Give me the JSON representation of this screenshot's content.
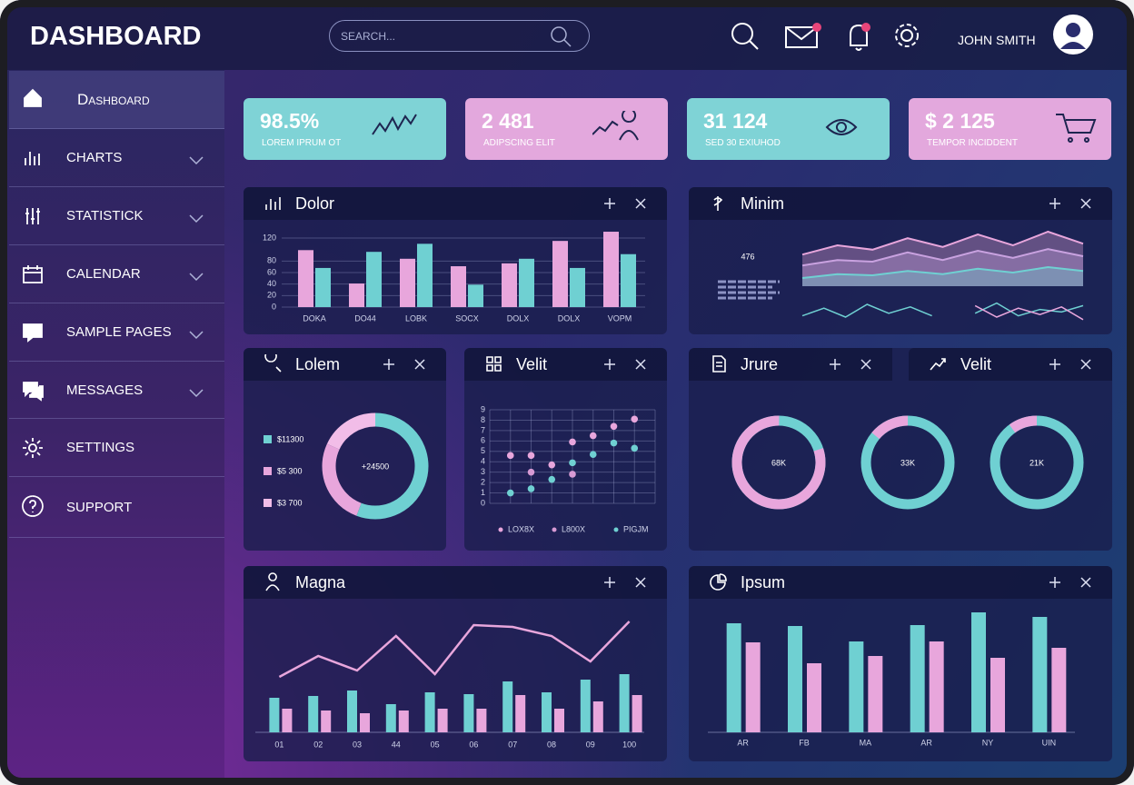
{
  "header": {
    "title": "DASHBOARD",
    "search": "SEARCH...",
    "user": "JOHN SMITH"
  },
  "sidebar": [
    "Dashboard",
    "CHARTS",
    "STATISTICK",
    "CALENDAR",
    "SAMPLE PAGES",
    "MESSAGES",
    "SETTINGS",
    "SUPPORT"
  ],
  "stats": [
    {
      "value": "98.5%",
      "label": "LOREM IPRUM OT",
      "color": "#7fd3d6"
    },
    {
      "value": "2 481",
      "label": "ADIPSCING ELIT",
      "color": "#e3a8dd"
    },
    {
      "value": "31 124",
      "label": "SED 30 EXIUHOD",
      "color": "#7fd3d6"
    },
    {
      "value": "$ 2 125",
      "label": "TEMPOR INCIDDENT",
      "color": "#e3a8dd"
    }
  ],
  "dolor": {
    "title": "Dolor",
    "type": "bar",
    "categories": [
      "DOKA",
      "DO44",
      "LOBK",
      "SOCX",
      "DOLX",
      "DOLX",
      "VOPM"
    ],
    "ylim": [
      0,
      135
    ],
    "yticks": [
      0,
      20,
      40,
      60,
      80,
      120
    ],
    "grid": true,
    "series": [
      {
        "color": "#e8a6dc",
        "values": [
          99,
          41,
          84,
          71,
          76,
          115,
          131
        ]
      },
      {
        "color": "#6fd0d2",
        "values": [
          68,
          96,
          110,
          39,
          84,
          68,
          92
        ]
      }
    ]
  },
  "minim": {
    "title": "Minim",
    "value": "476",
    "type": "area",
    "ylim": [
      0,
      100
    ],
    "series": [
      {
        "color": "#e8a6dc",
        "values": [
          58,
          75,
          67,
          88,
          72,
          95,
          75,
          100,
          78
        ]
      },
      {
        "color": "#c9a2e0",
        "values": [
          38,
          48,
          45,
          62,
          48,
          65,
          52,
          68,
          55
        ]
      },
      {
        "color": "#6fd0d2",
        "values": [
          15,
          22,
          20,
          28,
          22,
          32,
          25,
          35,
          28
        ]
      }
    ],
    "lines": {
      "type": "line",
      "ylim": [
        0,
        100
      ],
      "series": [
        {
          "color": "#6fd0d2",
          "values": [
            30,
            60,
            25,
            75,
            40,
            65,
            30,
            null,
            40,
            80,
            30,
            55,
            45,
            70
          ]
        },
        {
          "color": "#e8a6dc",
          "values": [
            null,
            null,
            null,
            null,
            null,
            null,
            null,
            null,
            70,
            25,
            60,
            35,
            65,
            15
          ]
        }
      ]
    }
  },
  "lolem": {
    "title": "Lolem",
    "type": "donut",
    "center": "+24500",
    "values": [
      11300,
      5300,
      3700
    ],
    "value_labels": [
      "$11300",
      "$5 300",
      "$3 700"
    ],
    "colors": [
      "#6fd0d2",
      "#e8a6dc",
      "#f2bde8"
    ]
  },
  "velit": {
    "title": "Velit",
    "type": "scatter",
    "xlim": [
      0,
      8
    ],
    "ylim": [
      0,
      9
    ],
    "yticks": [
      0,
      1,
      2,
      3,
      4,
      5,
      6,
      7,
      8,
      9
    ],
    "grid": true,
    "series": [
      {
        "name": "LOX8X",
        "color": "#e8a6dc",
        "x": [
          1,
          2,
          3,
          4,
          5,
          6,
          7
        ],
        "values": [
          4.6,
          4.6,
          3.7,
          5.9,
          6.5,
          7.4,
          8.1
        ]
      },
      {
        "name": "L800X",
        "color": "#d79ad4",
        "x": [
          2,
          4
        ],
        "values": [
          3,
          2.8
        ]
      },
      {
        "name": "PIGJM",
        "color": "#6fd0d2",
        "x": [
          1,
          2,
          3,
          4,
          5,
          6,
          7
        ],
        "values": [
          1,
          1.4,
          2.3,
          3.9,
          4.7,
          5.8,
          5.3
        ]
      }
    ]
  },
  "jrure": {
    "title": "Jrure",
    "type": "ring",
    "labels": [
      "68K",
      "33K",
      "21K"
    ],
    "values": [
      80,
      14,
      10
    ],
    "colors": [
      "#e8a6dc",
      "#6fd0d2"
    ]
  },
  "velit2": {
    "title": "Velit"
  },
  "magna": {
    "title": "Magna",
    "type": "bar",
    "categories": [
      "01",
      "02",
      "03",
      "44",
      "05",
      "06",
      "07",
      "08",
      "09",
      "100"
    ],
    "ylim": [
      0,
      130
    ],
    "series": [
      {
        "type": "bar",
        "color": "#6fd0d2",
        "values": [
          38,
          40,
          46,
          31,
          44,
          42,
          56,
          44,
          58,
          64
        ]
      },
      {
        "type": "bar",
        "color": "#e8a6dc",
        "values": [
          26,
          24,
          21,
          24,
          26,
          26,
          41,
          26,
          34,
          41
        ]
      },
      {
        "type": "line",
        "color": "#e8a6dc",
        "values": [
          61,
          84,
          68,
          106,
          64,
          118,
          116,
          106,
          78,
          122
        ]
      }
    ]
  },
  "ipsum": {
    "title": "Ipsum",
    "type": "bar",
    "categories": [
      "AR",
      "FB",
      "MA",
      "AR",
      "NY",
      "UIN"
    ],
    "ylim": [
      0,
      140
    ],
    "series": [
      {
        "color": "#6fd0d2",
        "values": [
          120,
          117,
          100,
          118,
          132,
          127
        ]
      },
      {
        "color": "#e8a6dc",
        "values": [
          99,
          76,
          84,
          100,
          82,
          93
        ]
      }
    ]
  }
}
